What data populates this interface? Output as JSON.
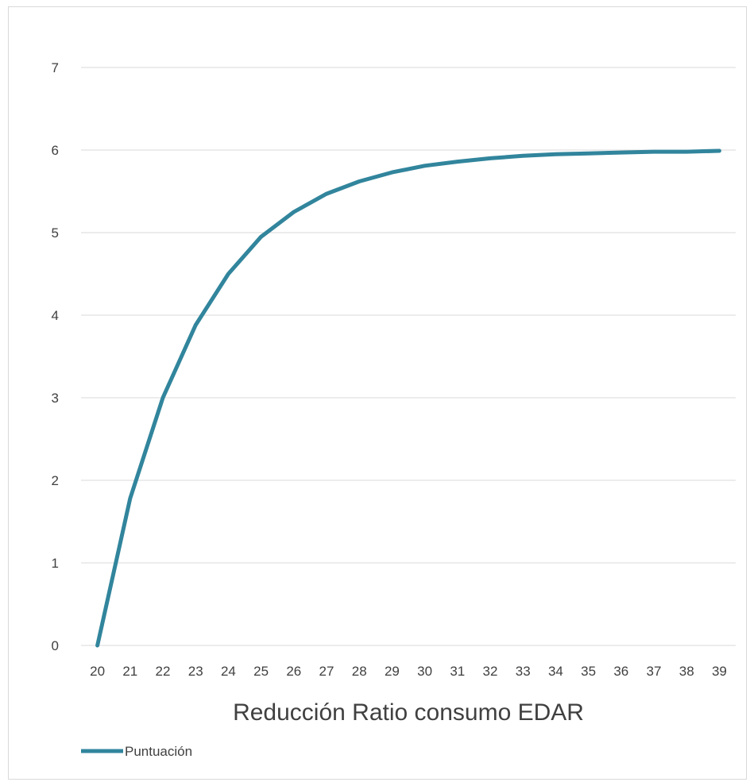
{
  "chart_data": {
    "type": "line",
    "title": "",
    "xlabel": "Reducción Ratio consumo EDAR",
    "ylabel": "",
    "x": [
      20,
      21,
      22,
      23,
      24,
      25,
      26,
      27,
      28,
      29,
      30,
      31,
      32,
      33,
      34,
      35,
      36,
      37,
      38,
      39
    ],
    "series": [
      {
        "name": "Puntuación",
        "color": "#31859c",
        "values": [
          0,
          1.78,
          3.0,
          3.88,
          4.5,
          4.95,
          5.25,
          5.47,
          5.62,
          5.73,
          5.81,
          5.86,
          5.9,
          5.93,
          5.95,
          5.96,
          5.97,
          5.98,
          5.98,
          5.99
        ]
      }
    ],
    "ylim": [
      0,
      7
    ],
    "yticks": [
      0,
      1,
      2,
      3,
      4,
      5,
      6,
      7
    ],
    "grid": true,
    "legend": "bottom-left"
  }
}
